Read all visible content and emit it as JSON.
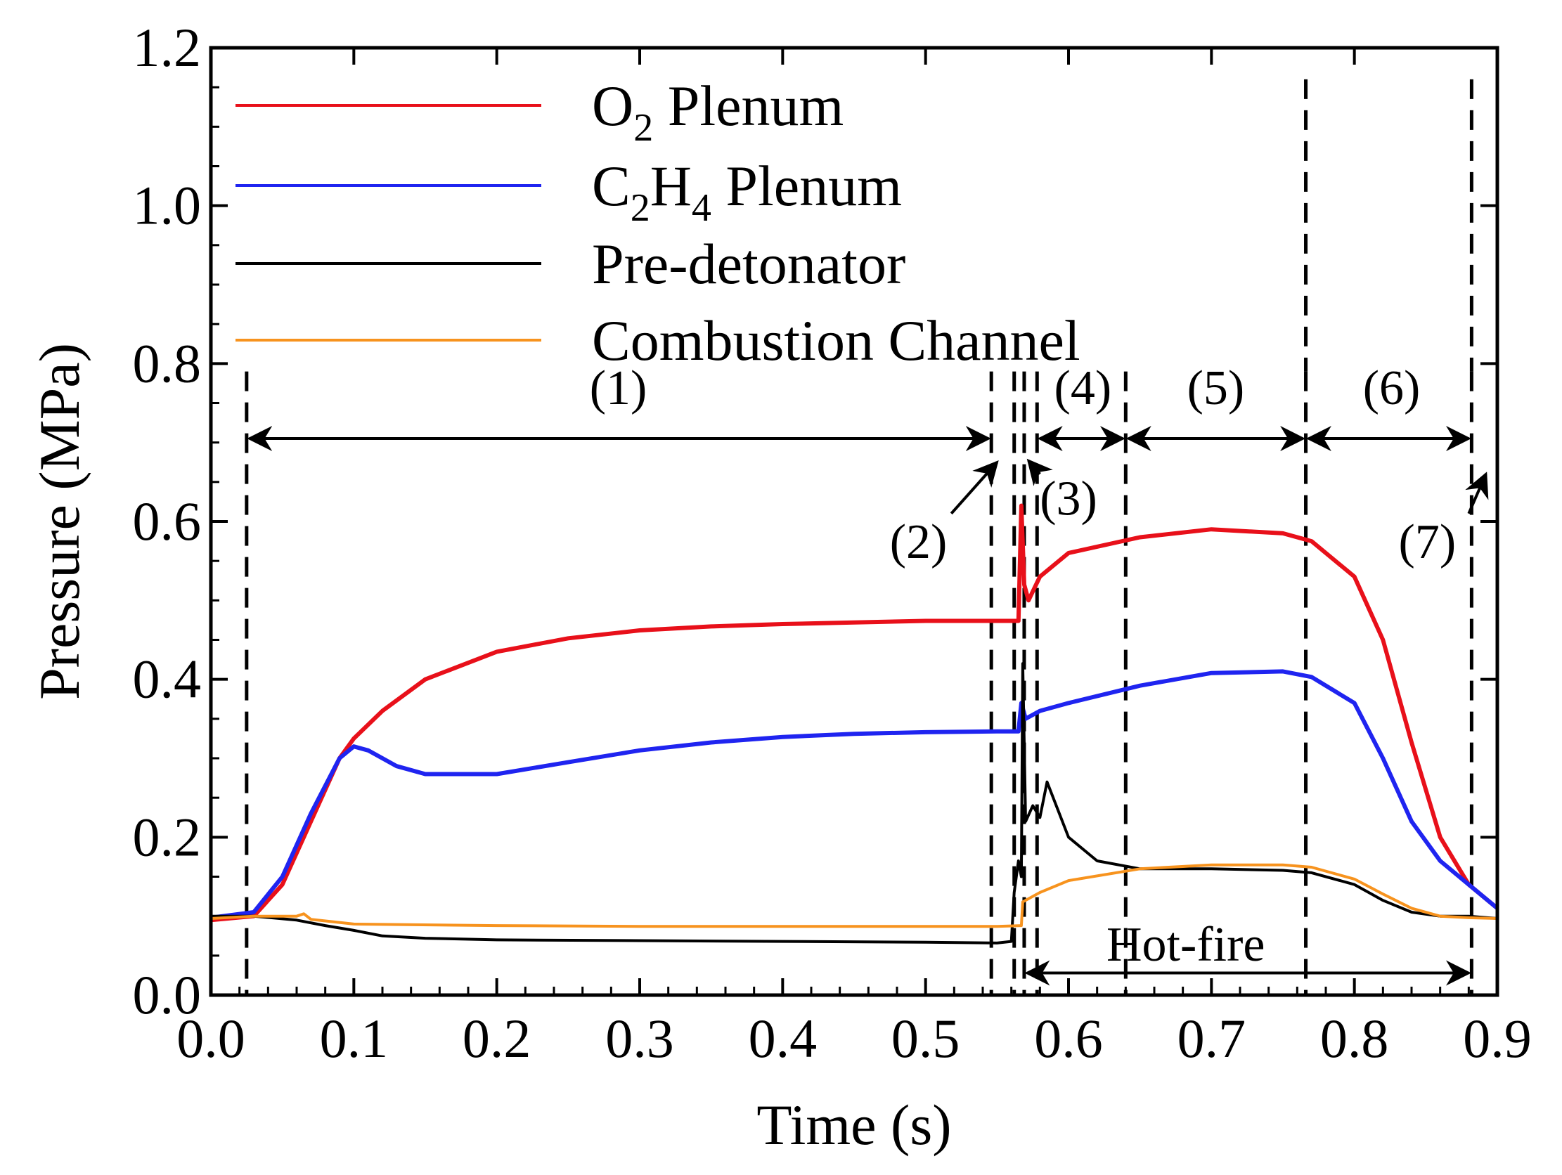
{
  "chart_data": {
    "type": "line",
    "title": "",
    "xlabel": "Time (s)",
    "ylabel": "Pressure (MPa)",
    "xlim": [
      0.0,
      0.9
    ],
    "ylim": [
      0.0,
      1.2
    ],
    "xticks": [
      "0.0",
      "0.1",
      "0.2",
      "0.3",
      "0.4",
      "0.5",
      "0.6",
      "0.7",
      "0.8",
      "0.9"
    ],
    "yticks": [
      "0.0",
      "0.2",
      "0.4",
      "0.6",
      "0.8",
      "1.0",
      "1.2"
    ],
    "legend_position": "top-left",
    "series": [
      {
        "name": "O2 Plenum",
        "label_main": "O",
        "label_sub": "2",
        "label_rest": " Plenum",
        "color": "#e8101a",
        "x": [
          0.0,
          0.03,
          0.05,
          0.07,
          0.09,
          0.1,
          0.12,
          0.15,
          0.2,
          0.25,
          0.3,
          0.35,
          0.4,
          0.45,
          0.5,
          0.55,
          0.565,
          0.567,
          0.569,
          0.572,
          0.58,
          0.6,
          0.65,
          0.7,
          0.75,
          0.77,
          0.8,
          0.82,
          0.84,
          0.86,
          0.88,
          0.9
        ],
        "y": [
          0.095,
          0.1,
          0.14,
          0.22,
          0.3,
          0.325,
          0.36,
          0.4,
          0.435,
          0.452,
          0.462,
          0.467,
          0.47,
          0.472,
          0.474,
          0.474,
          0.474,
          0.62,
          0.52,
          0.5,
          0.53,
          0.56,
          0.58,
          0.59,
          0.585,
          0.575,
          0.53,
          0.45,
          0.32,
          0.2,
          0.14,
          0.11
        ]
      },
      {
        "name": "C2H4 Plenum",
        "label_main": "C",
        "label_sub": "2",
        "label_mid": "H",
        "label_sub2": "4",
        "label_rest": " Plenum",
        "color": "#1f24f0",
        "x": [
          0.0,
          0.03,
          0.05,
          0.07,
          0.09,
          0.1,
          0.11,
          0.13,
          0.15,
          0.2,
          0.25,
          0.3,
          0.35,
          0.4,
          0.45,
          0.5,
          0.55,
          0.565,
          0.567,
          0.57,
          0.58,
          0.6,
          0.65,
          0.7,
          0.75,
          0.77,
          0.8,
          0.82,
          0.84,
          0.86,
          0.88,
          0.9
        ],
        "y": [
          0.098,
          0.105,
          0.15,
          0.23,
          0.3,
          0.315,
          0.31,
          0.29,
          0.28,
          0.28,
          0.295,
          0.31,
          0.32,
          0.327,
          0.331,
          0.333,
          0.334,
          0.334,
          0.37,
          0.35,
          0.36,
          0.37,
          0.392,
          0.408,
          0.41,
          0.403,
          0.37,
          0.3,
          0.22,
          0.17,
          0.14,
          0.11
        ]
      },
      {
        "name": "Pre-detonator",
        "label_main": "Pre-detonator",
        "color": "#000000",
        "x": [
          0.0,
          0.03,
          0.06,
          0.08,
          0.1,
          0.12,
          0.15,
          0.2,
          0.3,
          0.4,
          0.5,
          0.55,
          0.56,
          0.562,
          0.565,
          0.567,
          0.568,
          0.57,
          0.575,
          0.58,
          0.585,
          0.6,
          0.62,
          0.65,
          0.7,
          0.75,
          0.77,
          0.8,
          0.82,
          0.84,
          0.86,
          0.88,
          0.9
        ],
        "y": [
          0.1,
          0.1,
          0.095,
          0.088,
          0.082,
          0.075,
          0.072,
          0.07,
          0.069,
          0.068,
          0.067,
          0.066,
          0.068,
          0.13,
          0.17,
          0.15,
          0.42,
          0.22,
          0.24,
          0.225,
          0.27,
          0.2,
          0.17,
          0.16,
          0.16,
          0.158,
          0.155,
          0.14,
          0.12,
          0.105,
          0.1,
          0.1,
          0.097
        ]
      },
      {
        "name": "Combustion Channel",
        "label_main": "Combustion Channel",
        "color": "#f7931e",
        "x": [
          0.0,
          0.03,
          0.06,
          0.065,
          0.07,
          0.1,
          0.2,
          0.3,
          0.4,
          0.5,
          0.55,
          0.567,
          0.568,
          0.58,
          0.6,
          0.65,
          0.7,
          0.75,
          0.77,
          0.8,
          0.82,
          0.84,
          0.86,
          0.88,
          0.9
        ],
        "y": [
          0.097,
          0.1,
          0.1,
          0.103,
          0.096,
          0.09,
          0.088,
          0.087,
          0.087,
          0.087,
          0.087,
          0.088,
          0.118,
          0.13,
          0.145,
          0.16,
          0.165,
          0.165,
          0.162,
          0.147,
          0.128,
          0.11,
          0.1,
          0.098,
          0.097
        ]
      }
    ],
    "dashed_lines_x": [
      0.025,
      0.546,
      0.562,
      0.569,
      0.578,
      0.64,
      0.766,
      0.882
    ],
    "phase_labels": [
      {
        "text": "(1)",
        "x": 0.285,
        "y": 0.77
      },
      {
        "text": "(2)",
        "x": 0.495,
        "y": 0.575
      },
      {
        "text": "(3)",
        "x": 0.6,
        "y": 0.63
      },
      {
        "text": "(4)",
        "x": 0.61,
        "y": 0.77
      },
      {
        "text": "(5)",
        "x": 0.703,
        "y": 0.77
      },
      {
        "text": "(6)",
        "x": 0.826,
        "y": 0.77
      },
      {
        "text": "(7)",
        "x": 0.851,
        "y": 0.575
      }
    ],
    "phase_arrows": [
      {
        "x1": 0.025,
        "x2": 0.546,
        "y": 0.705
      },
      {
        "x1": 0.578,
        "x2": 0.64,
        "y": 0.705
      },
      {
        "x1": 0.64,
        "x2": 0.766,
        "y": 0.705
      },
      {
        "x1": 0.766,
        "x2": 0.882,
        "y": 0.705
      }
    ],
    "hot_fire_label": "Hot-fire",
    "hot_fire_label_pos": {
      "x": 0.682,
      "y": 0.065
    },
    "hot_fire_arrow": {
      "x1": 0.569,
      "x2": 0.882,
      "y": 0.028
    },
    "pointer_arrows": [
      {
        "from": [
          0.518,
          0.61
        ],
        "to": [
          0.55,
          0.675
        ]
      },
      {
        "from": [
          0.58,
          0.66
        ],
        "to": [
          0.572,
          0.677
        ]
      },
      {
        "from": [
          0.88,
          0.61
        ],
        "to": [
          0.892,
          0.66
        ]
      }
    ]
  }
}
